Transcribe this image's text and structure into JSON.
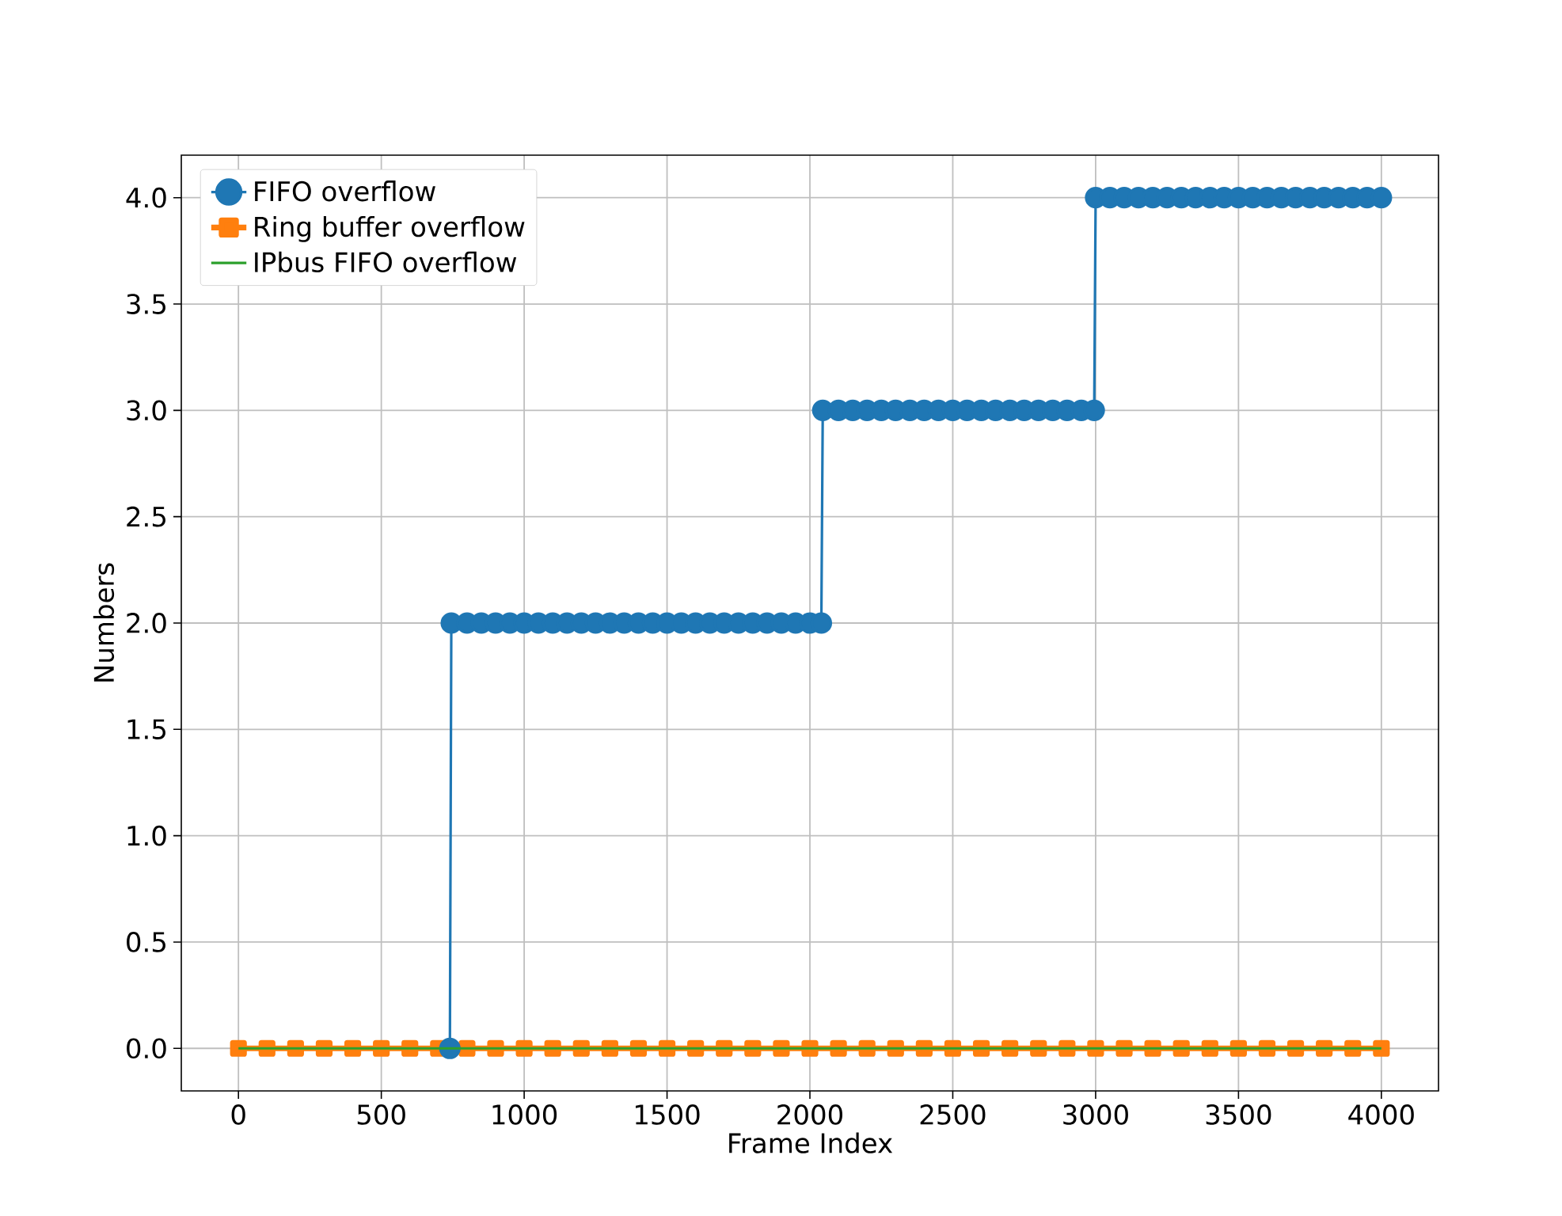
{
  "chart_data": {
    "type": "line",
    "xlabel": "Frame Index",
    "ylabel": "Numbers",
    "xlim": [
      -200,
      4200
    ],
    "ylim": [
      -0.2,
      4.2
    ],
    "xticks": [
      0,
      500,
      1000,
      1500,
      2000,
      2500,
      3000,
      3500,
      4000
    ],
    "yticks": [
      {
        "value": 0,
        "label": "0.0"
      },
      {
        "value": 0.5,
        "label": "0.5"
      },
      {
        "value": 1,
        "label": "1.0"
      },
      {
        "value": 1.5,
        "label": "1.5"
      },
      {
        "value": 2,
        "label": "2.0"
      },
      {
        "value": 2.5,
        "label": "2.5"
      },
      {
        "value": 3,
        "label": "3.0"
      },
      {
        "value": 3.5,
        "label": "3.5"
      },
      {
        "value": 4,
        "label": "4.0"
      }
    ],
    "grid": true,
    "legend": "top left",
    "series": [
      {
        "name": "FIFO overflow",
        "color": "#1f77b4",
        "marker": "circle",
        "x": [
          740,
          745,
          800,
          850,
          900,
          950,
          1000,
          1050,
          1100,
          1150,
          1200,
          1250,
          1300,
          1350,
          1400,
          1450,
          1500,
          1550,
          1600,
          1650,
          1700,
          1750,
          1800,
          1850,
          1900,
          1950,
          2000,
          2040,
          2045,
          2100,
          2150,
          2200,
          2250,
          2300,
          2350,
          2400,
          2450,
          2500,
          2550,
          2600,
          2650,
          2700,
          2750,
          2800,
          2850,
          2900,
          2950,
          2995,
          3000,
          3050,
          3100,
          3150,
          3200,
          3250,
          3300,
          3350,
          3400,
          3450,
          3500,
          3550,
          3600,
          3650,
          3700,
          3750,
          3800,
          3850,
          3900,
          3950,
          4000
        ],
        "values": [
          0,
          2,
          2,
          2,
          2,
          2,
          2,
          2,
          2,
          2,
          2,
          2,
          2,
          2,
          2,
          2,
          2,
          2,
          2,
          2,
          2,
          2,
          2,
          2,
          2,
          2,
          2,
          2,
          3,
          3,
          3,
          3,
          3,
          3,
          3,
          3,
          3,
          3,
          3,
          3,
          3,
          3,
          3,
          3,
          3,
          3,
          3,
          3,
          4,
          4,
          4,
          4,
          4,
          4,
          4,
          4,
          4,
          4,
          4,
          4,
          4,
          4,
          4,
          4,
          4,
          4,
          4,
          4,
          4
        ]
      },
      {
        "name": "Ring buffer overflow",
        "color": "#ff7f0e",
        "marker": "square",
        "x": [
          0,
          100,
          200,
          300,
          400,
          500,
          600,
          700,
          800,
          900,
          1000,
          1100,
          1200,
          1300,
          1400,
          1500,
          1600,
          1700,
          1800,
          1900,
          2000,
          2100,
          2200,
          2300,
          2400,
          2500,
          2600,
          2700,
          2800,
          2900,
          3000,
          3100,
          3200,
          3300,
          3400,
          3500,
          3600,
          3700,
          3800,
          3900,
          4000
        ],
        "values": [
          0,
          0,
          0,
          0,
          0,
          0,
          0,
          0,
          0,
          0,
          0,
          0,
          0,
          0,
          0,
          0,
          0,
          0,
          0,
          0,
          0,
          0,
          0,
          0,
          0,
          0,
          0,
          0,
          0,
          0,
          0,
          0,
          0,
          0,
          0,
          0,
          0,
          0,
          0,
          0,
          0
        ]
      },
      {
        "name": "IPbus FIFO overflow",
        "color": "#2ca02c",
        "marker": "none",
        "x": [
          0,
          4000
        ],
        "values": [
          0,
          0
        ]
      }
    ]
  }
}
